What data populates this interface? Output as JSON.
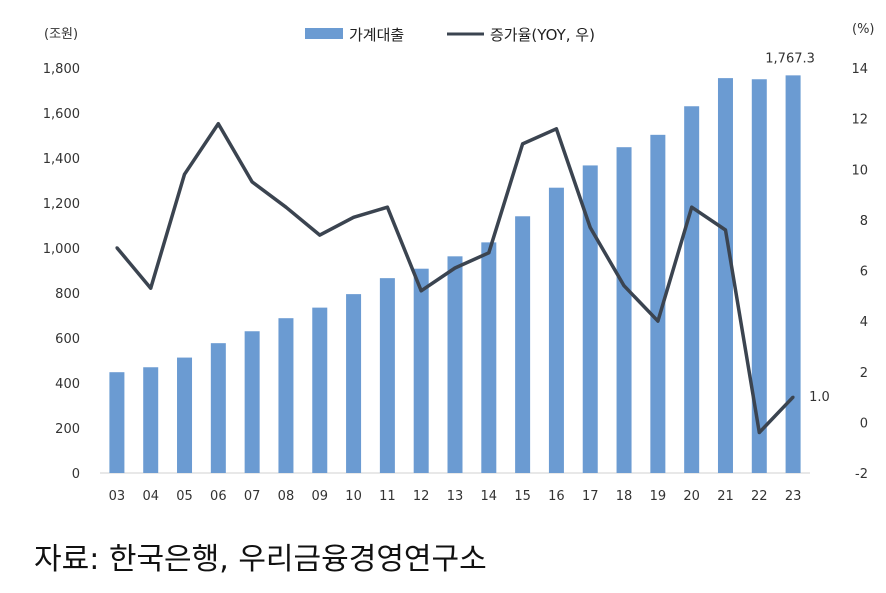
{
  "chart_data": {
    "type": "bar+line",
    "categories": [
      "03",
      "04",
      "05",
      "06",
      "07",
      "08",
      "09",
      "10",
      "11",
      "12",
      "13",
      "14",
      "15",
      "16",
      "17",
      "18",
      "19",
      "20",
      "21",
      "22",
      "23"
    ],
    "series": [
      {
        "name": "가계대출",
        "type": "bar",
        "axis": "left",
        "color": "#6b9bd2",
        "values": [
          448,
          470,
          513,
          577,
          630,
          688,
          735,
          795,
          866,
          908,
          963,
          1025,
          1141,
          1268,
          1367,
          1448,
          1503,
          1630,
          1755,
          1750,
          1767.3
        ]
      },
      {
        "name": "증가율(YOY, 우)",
        "type": "line",
        "axis": "right",
        "color": "#3b4450",
        "values": [
          6.9,
          5.3,
          9.8,
          11.8,
          9.5,
          8.5,
          7.4,
          8.1,
          8.5,
          5.2,
          6.1,
          6.7,
          11.0,
          11.6,
          7.7,
          5.4,
          4.0,
          8.5,
          7.6,
          -0.4,
          1.0
        ]
      }
    ],
    "left_axis": {
      "unit": "(조원)",
      "ylim": [
        0,
        1800
      ],
      "ticks": [
        "0",
        "200",
        "400",
        "600",
        "800",
        "1,000",
        "1,200",
        "1,400",
        "1,600",
        "1,800"
      ]
    },
    "right_axis": {
      "unit": "(%)",
      "ylim": [
        -2,
        14
      ],
      "ticks": [
        "-2",
        "0",
        "2",
        "4",
        "6",
        "8",
        "10",
        "12",
        "14"
      ]
    },
    "data_labels": {
      "last_bar": "1,767.3",
      "last_point": "1.0"
    },
    "legend_position": "top",
    "grid": false
  },
  "source_note": "자료: 한국은행, 우리금융경영연구소"
}
